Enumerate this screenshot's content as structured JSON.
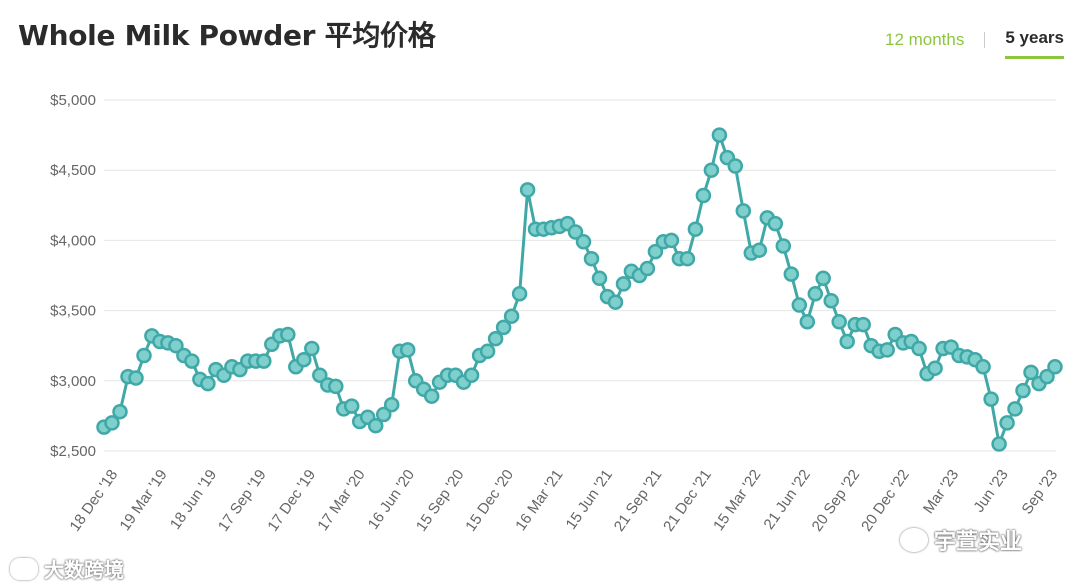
{
  "header": {
    "title": "Whole Milk Powder 平均价格",
    "tab_12_months": "12 months",
    "tab_5_years": "5 years"
  },
  "colors": {
    "line": "#41a8a8",
    "marker_fill": "#7fd0cc",
    "accent": "#8cc63f",
    "grid": "#e6e6e6"
  },
  "chart_data": {
    "type": "line",
    "title": "Whole Milk Powder 平均价格",
    "ylim": [
      2500,
      5000
    ],
    "y_ticks": [
      2500,
      3000,
      3500,
      4000,
      4500,
      5000
    ],
    "y_tick_labels": [
      "$2,500",
      "$3,000",
      "$3,500",
      "$4,000",
      "$4,500",
      "$5,000"
    ],
    "x_tick_labels": [
      "18 Dec '18",
      "19 Mar '19",
      "18 Jun '19",
      "17 Sep '19",
      "17 Dec '19",
      "17 Mar '20",
      "16 Jun '20",
      "15 Sep '20",
      "15 Dec '20",
      "16 Mar '21",
      "15 Jun '21",
      "21 Sep '21",
      "21 Dec '21",
      "15 Mar '22",
      "21 Jun '22",
      "20 Sep '22",
      "20 Dec '22",
      "Mar '23",
      "Jun '23",
      "Sep '23"
    ],
    "grid": true,
    "legend": "none",
    "series": [
      {
        "values": [
          2670,
          2700,
          2780,
          3030,
          3020,
          3180,
          3320,
          3280,
          3270,
          3250,
          3180,
          3140,
          3010,
          2980,
          3080,
          3040,
          3100,
          3080,
          3140,
          3140,
          3140,
          3260,
          3320,
          3330,
          3100,
          3150,
          3230,
          3040,
          2970,
          2960,
          2800,
          2820,
          2710,
          2740,
          2680,
          2760,
          2830,
          3210,
          3220,
          3000,
          2940,
          2890,
          2990,
          3040,
          3040,
          2990,
          3040,
          3180,
          3210,
          3300,
          3380,
          3460,
          3620,
          4360,
          4080,
          4080,
          4090,
          4100,
          4120,
          4060,
          3990,
          3870,
          3730,
          3600,
          3560,
          3690,
          3780,
          3750,
          3800,
          3920,
          3990,
          4000,
          3870,
          3870,
          4080,
          4320,
          4500,
          4750,
          4590,
          4530,
          4210,
          3910,
          3930,
          4160,
          4120,
          3960,
          3760,
          3540,
          3420,
          3620,
          3730,
          3570,
          3420,
          3280,
          3400,
          3400,
          3250,
          3210,
          3220,
          3330,
          3270,
          3280,
          3230,
          3050,
          3090,
          3230,
          3240,
          3180,
          3170,
          3150,
          3100,
          2870,
          2550,
          2700,
          2800,
          2930,
          3060,
          2980,
          3030,
          3100
        ]
      }
    ]
  },
  "watermarks": {
    "left": "大数跨境",
    "right": "宇萱实业"
  }
}
